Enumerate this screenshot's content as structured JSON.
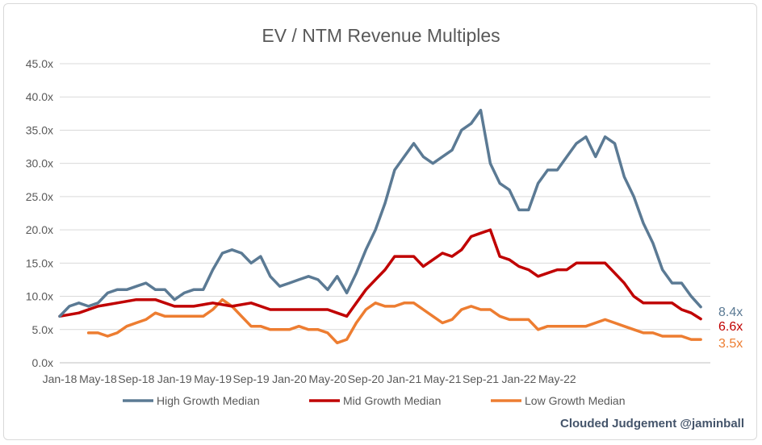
{
  "chart_data": {
    "type": "line",
    "title": "EV / NTM Revenue Multiples",
    "xlabel": "",
    "ylabel": "",
    "ylim": [
      0,
      45
    ],
    "y_ticks": [
      "0.0x",
      "5.0x",
      "10.0x",
      "15.0x",
      "20.0x",
      "25.0x",
      "30.0x",
      "35.0x",
      "40.0x",
      "45.0x"
    ],
    "x_ticks": [
      "Jan-18",
      "May-18",
      "Sep-18",
      "Jan-19",
      "May-19",
      "Sep-19",
      "Jan-20",
      "May-20",
      "Sep-20",
      "Jan-21",
      "May-21",
      "Sep-21",
      "Jan-22",
      "May-22"
    ],
    "grid": "horizontal",
    "legend_position": "bottom",
    "x_unit": "months since Jan-18",
    "series": [
      {
        "name": "High Growth Median",
        "color": "#5b7a94",
        "end_label": "8.4x",
        "points": [
          [
            0,
            7
          ],
          [
            1,
            8.5
          ],
          [
            2,
            9
          ],
          [
            3,
            8.5
          ],
          [
            4,
            9
          ],
          [
            5,
            10.5
          ],
          [
            6,
            11
          ],
          [
            7,
            11
          ],
          [
            8,
            11.5
          ],
          [
            9,
            12
          ],
          [
            10,
            11
          ],
          [
            11,
            11
          ],
          [
            12,
            9.5
          ],
          [
            13,
            10.5
          ],
          [
            14,
            11
          ],
          [
            15,
            11
          ],
          [
            16,
            14
          ],
          [
            17,
            16.5
          ],
          [
            18,
            17
          ],
          [
            19,
            16.5
          ],
          [
            20,
            15
          ],
          [
            21,
            16
          ],
          [
            22,
            13
          ],
          [
            23,
            11.5
          ],
          [
            24,
            12
          ],
          [
            25,
            12.5
          ],
          [
            26,
            13
          ],
          [
            27,
            12.5
          ],
          [
            28,
            11
          ],
          [
            29,
            13
          ],
          [
            30,
            10.5
          ],
          [
            31,
            13.5
          ],
          [
            32,
            17
          ],
          [
            33,
            20
          ],
          [
            34,
            24
          ],
          [
            35,
            29
          ],
          [
            36,
            31
          ],
          [
            37,
            33
          ],
          [
            38,
            31
          ],
          [
            39,
            30
          ],
          [
            40,
            31
          ],
          [
            41,
            32
          ],
          [
            42,
            35
          ],
          [
            43,
            36
          ],
          [
            44,
            38
          ],
          [
            45,
            30
          ],
          [
            46,
            27
          ],
          [
            47,
            26
          ],
          [
            48,
            23
          ],
          [
            49,
            23
          ],
          [
            50,
            27
          ],
          [
            51,
            29
          ],
          [
            52,
            29
          ],
          [
            53,
            31
          ],
          [
            54,
            33
          ],
          [
            55,
            34
          ],
          [
            56,
            31
          ],
          [
            57,
            34
          ],
          [
            58,
            33
          ],
          [
            59,
            28
          ],
          [
            60,
            25
          ],
          [
            61,
            21
          ],
          [
            62,
            18
          ],
          [
            63,
            14
          ],
          [
            64,
            12
          ],
          [
            65,
            12
          ],
          [
            66,
            10
          ],
          [
            67,
            8.4
          ]
        ]
      },
      {
        "name": "Mid Growth Median",
        "color": "#c00000",
        "end_label": "6.6x",
        "points": [
          [
            0,
            7
          ],
          [
            2,
            7.5
          ],
          [
            4,
            8.5
          ],
          [
            6,
            9
          ],
          [
            8,
            9.5
          ],
          [
            10,
            9.5
          ],
          [
            11,
            9
          ],
          [
            12,
            8.5
          ],
          [
            14,
            8.5
          ],
          [
            16,
            9
          ],
          [
            18,
            8.5
          ],
          [
            20,
            9
          ],
          [
            22,
            8
          ],
          [
            24,
            8
          ],
          [
            26,
            8
          ],
          [
            28,
            8
          ],
          [
            29,
            7.5
          ],
          [
            30,
            7
          ],
          [
            31,
            9
          ],
          [
            32,
            11
          ],
          [
            33,
            12.5
          ],
          [
            34,
            14
          ],
          [
            35,
            16
          ],
          [
            36,
            16
          ],
          [
            37,
            16
          ],
          [
            38,
            14.5
          ],
          [
            39,
            15.5
          ],
          [
            40,
            16.5
          ],
          [
            41,
            16
          ],
          [
            42,
            17
          ],
          [
            43,
            19
          ],
          [
            44,
            19.5
          ],
          [
            45,
            20
          ],
          [
            46,
            16
          ],
          [
            47,
            15.5
          ],
          [
            48,
            14.5
          ],
          [
            49,
            14
          ],
          [
            50,
            13
          ],
          [
            51,
            13.5
          ],
          [
            52,
            14
          ],
          [
            53,
            14
          ],
          [
            54,
            15
          ],
          [
            55,
            15
          ],
          [
            56,
            15
          ],
          [
            57,
            15
          ],
          [
            58,
            13.5
          ],
          [
            59,
            12
          ],
          [
            60,
            10
          ],
          [
            61,
            9
          ],
          [
            62,
            9
          ],
          [
            63,
            9
          ],
          [
            64,
            9
          ],
          [
            65,
            8
          ],
          [
            66,
            7.5
          ],
          [
            67,
            6.6
          ]
        ]
      },
      {
        "name": "Low Growth Median",
        "color": "#ed7d31",
        "end_label": "3.5x",
        "points": [
          [
            3,
            4.5
          ],
          [
            4,
            4.5
          ],
          [
            5,
            4
          ],
          [
            6,
            4.5
          ],
          [
            7,
            5.5
          ],
          [
            8,
            6
          ],
          [
            9,
            6.5
          ],
          [
            10,
            7.5
          ],
          [
            11,
            7
          ],
          [
            12,
            7
          ],
          [
            13,
            7
          ],
          [
            14,
            7
          ],
          [
            15,
            7
          ],
          [
            16,
            8
          ],
          [
            17,
            9.5
          ],
          [
            18,
            8.5
          ],
          [
            19,
            7
          ],
          [
            20,
            5.5
          ],
          [
            21,
            5.5
          ],
          [
            22,
            5
          ],
          [
            23,
            5
          ],
          [
            24,
            5
          ],
          [
            25,
            5.5
          ],
          [
            26,
            5
          ],
          [
            27,
            5
          ],
          [
            28,
            4.5
          ],
          [
            29,
            3
          ],
          [
            30,
            3.5
          ],
          [
            31,
            6
          ],
          [
            32,
            8
          ],
          [
            33,
            9
          ],
          [
            34,
            8.5
          ],
          [
            35,
            8.5
          ],
          [
            36,
            9
          ],
          [
            37,
            9
          ],
          [
            38,
            8
          ],
          [
            39,
            7
          ],
          [
            40,
            6
          ],
          [
            41,
            6.5
          ],
          [
            42,
            8
          ],
          [
            43,
            8.5
          ],
          [
            44,
            8
          ],
          [
            45,
            8
          ],
          [
            46,
            7
          ],
          [
            47,
            6.5
          ],
          [
            48,
            6.5
          ],
          [
            49,
            6.5
          ],
          [
            50,
            5
          ],
          [
            51,
            5.5
          ],
          [
            52,
            5.5
          ],
          [
            53,
            5.5
          ],
          [
            54,
            5.5
          ],
          [
            55,
            5.5
          ],
          [
            56,
            6
          ],
          [
            57,
            6.5
          ],
          [
            58,
            6
          ],
          [
            59,
            5.5
          ],
          [
            60,
            5
          ],
          [
            61,
            4.5
          ],
          [
            62,
            4.5
          ],
          [
            63,
            4
          ],
          [
            64,
            4
          ],
          [
            65,
            4
          ],
          [
            66,
            3.5
          ],
          [
            67,
            3.5
          ]
        ]
      }
    ]
  },
  "credit": "Clouded Judgement @jaminball"
}
